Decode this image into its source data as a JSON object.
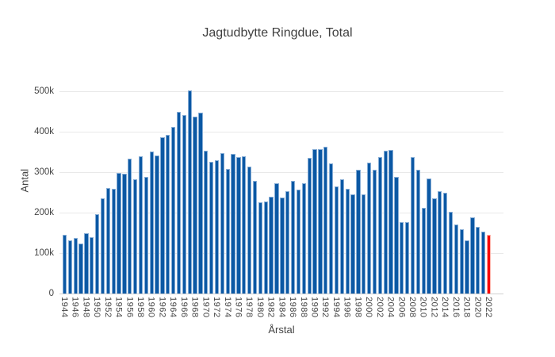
{
  "title": "Jagtudbytte Ringdue, Total",
  "axes": {
    "x_label": "Årstal",
    "y_label": "Antal"
  },
  "colors": {
    "bar": "#0b58a4",
    "bar_edge": "#86add6",
    "highlight": "#f80000",
    "highlight_edge": "#ffb0a8",
    "grid": "#e9e9e9",
    "text": "#444444",
    "background": "#ffffff"
  },
  "chart_data": {
    "type": "bar",
    "title": "Jagtudbytte Ringdue, Total",
    "xlabel": "Årstal",
    "ylabel": "Antal",
    "ylim": [
      0,
      500000
    ],
    "grid": true,
    "legend_position": "none",
    "highlight_index": 78,
    "xtick_step": 2,
    "ytick_values": [
      0,
      100000,
      200000,
      300000,
      400000,
      500000
    ],
    "ytick_labels": [
      "0",
      "100k",
      "200k",
      "300k",
      "400k",
      "500k"
    ],
    "categories": [
      1944,
      1945,
      1946,
      1947,
      1948,
      1949,
      1950,
      1951,
      1952,
      1953,
      1954,
      1955,
      1956,
      1957,
      1958,
      1959,
      1960,
      1961,
      1962,
      1963,
      1964,
      1965,
      1966,
      1967,
      1968,
      1969,
      1970,
      1971,
      1972,
      1973,
      1974,
      1975,
      1976,
      1977,
      1978,
      1979,
      1980,
      1981,
      1982,
      1983,
      1984,
      1985,
      1986,
      1987,
      1988,
      1989,
      1990,
      1991,
      1992,
      1993,
      1994,
      1995,
      1996,
      1997,
      1998,
      1999,
      2000,
      2001,
      2002,
      2003,
      2004,
      2005,
      2006,
      2007,
      2008,
      2009,
      2010,
      2011,
      2012,
      2013,
      2014,
      2015,
      2016,
      2017,
      2018,
      2019,
      2020,
      2021,
      2022
    ],
    "values": [
      146000,
      131000,
      138000,
      124000,
      150000,
      140000,
      196000,
      235000,
      260000,
      258000,
      299000,
      296000,
      334000,
      282000,
      340000,
      289000,
      351000,
      342000,
      386000,
      392000,
      412000,
      450000,
      441000,
      502000,
      438000,
      448000,
      353000,
      325000,
      330000,
      348000,
      308000,
      346000,
      338000,
      339000,
      313000,
      278000,
      226000,
      228000,
      240000,
      273000,
      237000,
      253000,
      279000,
      256000,
      272000,
      336000,
      357000,
      357000,
      363000,
      322000,
      264000,
      282000,
      259000,
      245000,
      305000,
      245000,
      324000,
      306000,
      337000,
      352000,
      354000,
      289000,
      176000,
      176000,
      338000,
      306000,
      212000,
      284000,
      235000,
      253000,
      250000,
      202000,
      170000,
      158000,
      131000,
      188000,
      165000,
      153000,
      145000
    ]
  }
}
